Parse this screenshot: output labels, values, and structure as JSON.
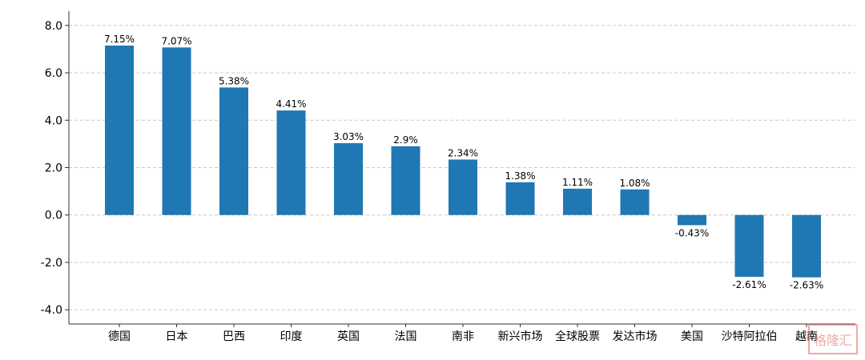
{
  "chart_data": {
    "type": "bar",
    "categories": [
      "德国",
      "日本",
      "巴西",
      "印度",
      "英国",
      "法国",
      "南非",
      "新兴市场",
      "全球股票",
      "发达市场",
      "美国",
      "沙特阿拉伯",
      "越南"
    ],
    "values": [
      7.15,
      7.07,
      5.38,
      4.41,
      3.03,
      2.9,
      2.34,
      1.38,
      1.11,
      1.08,
      -0.43,
      -2.61,
      -2.63
    ],
    "data_labels": [
      "7.15%",
      "7.07%",
      "5.38%",
      "4.41%",
      "3.03%",
      "2.9%",
      "2.34%",
      "1.38%",
      "1.11%",
      "1.08%",
      "-0.43%",
      "-2.61%",
      "-2.63%"
    ],
    "y_ticks": [
      -4.0,
      -2.0,
      0.0,
      2.0,
      4.0,
      6.0,
      8.0
    ],
    "y_tick_labels": [
      "-4.0",
      "-2.0",
      "0.0",
      "2.0",
      "4.0",
      "6.0",
      "8.0"
    ],
    "ylim": [
      -4.6,
      8.6
    ],
    "title": "",
    "xlabel": "",
    "ylabel": "",
    "grid": true,
    "bar_color": "#1f77b4",
    "watermark_text": "格隆汇"
  }
}
